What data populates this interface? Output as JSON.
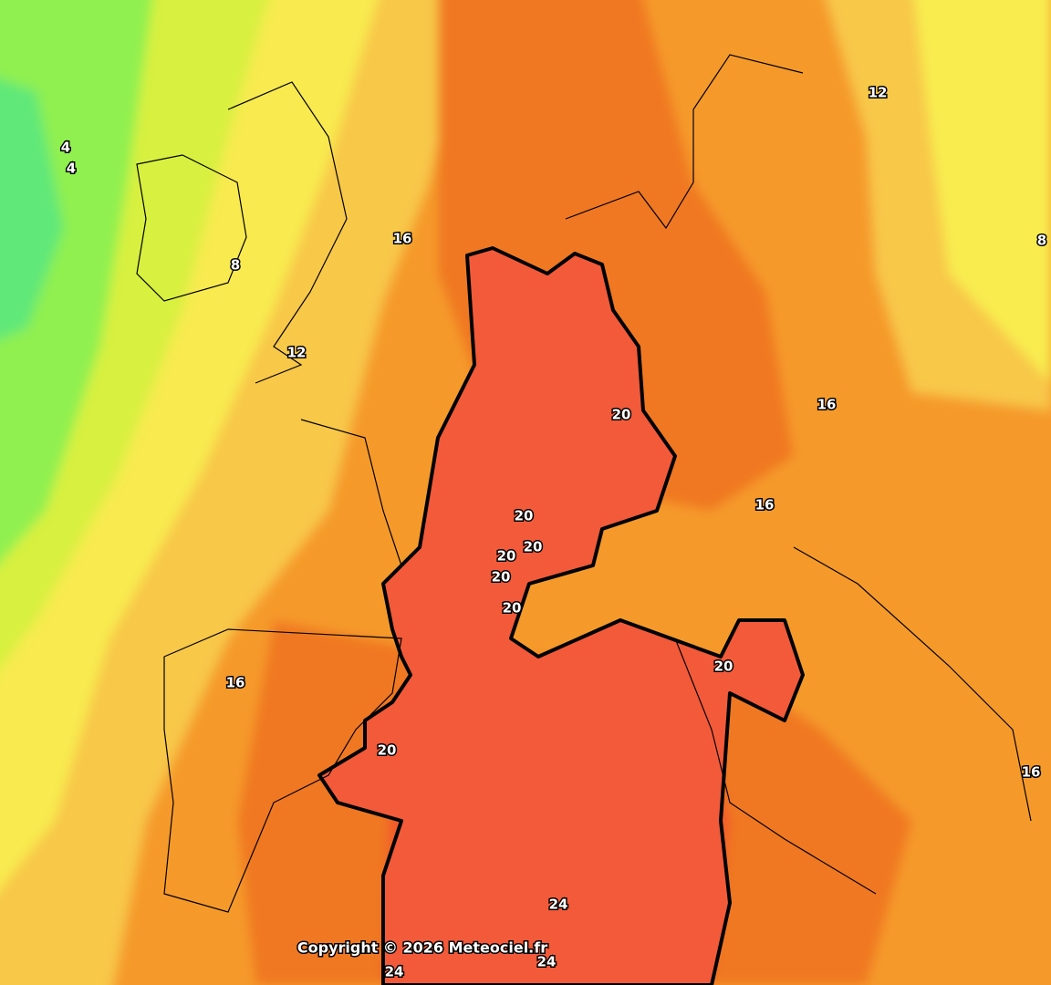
{
  "map": {
    "contour_labels": [
      4,
      4,
      8,
      12,
      16,
      12,
      8,
      16,
      20,
      16,
      20,
      20,
      20,
      20,
      20,
      20,
      16,
      20,
      16,
      24,
      24,
      24
    ],
    "copyright": "Copyright © 2026 Meteociel.fr"
  }
}
